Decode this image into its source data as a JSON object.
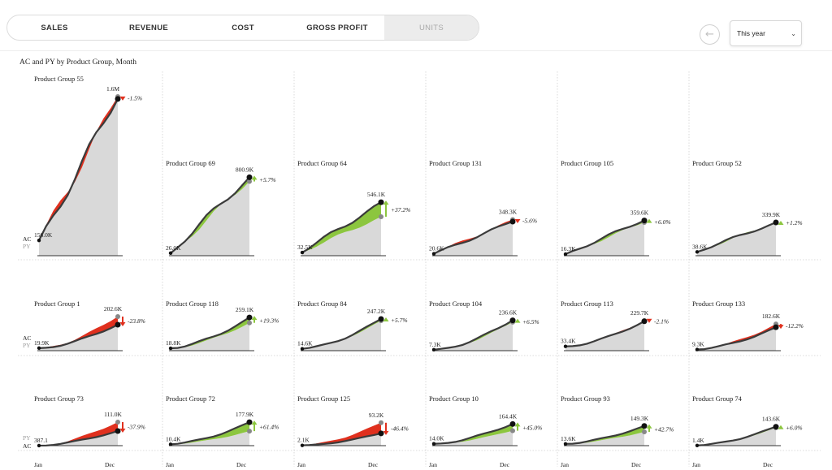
{
  "tabs": [
    {
      "label": "SALES",
      "active": false
    },
    {
      "label": "REVENUE",
      "active": false
    },
    {
      "label": "COST",
      "active": false
    },
    {
      "label": "GROSS PROFIT",
      "active": false
    },
    {
      "label": "UNITS",
      "active": true
    }
  ],
  "back_icon": "arrow-left-circle-icon",
  "period_select": {
    "value": "This year",
    "icon": "chevron-down-icon"
  },
  "colors": {
    "ac_line": "#3b3b3b",
    "py_area": "#d9d9d9",
    "positive": "#8cc63f",
    "negative": "#e0301e"
  },
  "chart_data": {
    "type": "small-multiples-area",
    "title": "AC and PY by Product Group, Month",
    "x_start": "Jan",
    "x_end": "Dec",
    "legend": {
      "ac": "AC",
      "py": "PY"
    },
    "rows": [
      {
        "axis_order": [
          "AC",
          "PY"
        ],
        "panels": [
          {
            "name": "Product Group 55",
            "start": "156.0K",
            "end": "1.6M",
            "delta": "-1.5%",
            "sign": "neg",
            "start_value": 156,
            "end_value": 1600,
            "py_end": 1624
          },
          {
            "name": "Product Group 69",
            "start": "26.0K",
            "end": "800.9K",
            "delta": "+5.7%",
            "sign": "pos",
            "start_value": 26,
            "end_value": 800.9,
            "py_end": 757.7
          },
          {
            "name": "Product Group 64",
            "start": "32.5K",
            "end": "546.1K",
            "delta": "+37.2%",
            "sign": "pos",
            "start_value": 32.5,
            "end_value": 546.1,
            "py_end": 398
          },
          {
            "name": "Product Group 131",
            "start": "20.6K",
            "end": "348.3K",
            "delta": "-5.6%",
            "sign": "neg",
            "start_value": 20.6,
            "end_value": 348.3,
            "py_end": 369
          },
          {
            "name": "Product Group 105",
            "start": "16.3K",
            "end": "359.6K",
            "delta": "+6.0%",
            "sign": "pos",
            "start_value": 16.3,
            "end_value": 359.6,
            "py_end": 339.2
          },
          {
            "name": "Product Group 52",
            "start": "38.6K",
            "end": "339.9K",
            "delta": "+1.2%",
            "sign": "pos",
            "start_value": 38.6,
            "end_value": 339.9,
            "py_end": 335.9
          }
        ]
      },
      {
        "axis_order": [
          "AC",
          "PY"
        ],
        "panels": [
          {
            "name": "Product Group 1",
            "start": "19.9K",
            "end": "202.6K",
            "delta": "-23.8%",
            "sign": "neg",
            "start_value": 19.9,
            "end_value": 202.6,
            "py_end": 265.9
          },
          {
            "name": "Product Group 118",
            "start": "18.8K",
            "end": "259.1K",
            "delta": "+19.3%",
            "sign": "pos",
            "start_value": 18.8,
            "end_value": 259.1,
            "py_end": 217.2
          },
          {
            "name": "Product Group 84",
            "start": "14.6K",
            "end": "247.2K",
            "delta": "+5.7%",
            "sign": "pos",
            "start_value": 14.6,
            "end_value": 247.2,
            "py_end": 233.9
          },
          {
            "name": "Product Group 104",
            "start": "7.3K",
            "end": "236.6K",
            "delta": "+6.5%",
            "sign": "pos",
            "start_value": 7.3,
            "end_value": 236.6,
            "py_end": 222.2
          },
          {
            "name": "Product Group 113",
            "start": "33.4K",
            "end": "229.7K",
            "delta": "-2.1%",
            "sign": "neg",
            "start_value": 33.4,
            "end_value": 229.7,
            "py_end": 234.6
          },
          {
            "name": "Product Group 133",
            "start": "9.3K",
            "end": "182.6K",
            "delta": "-12.2%",
            "sign": "neg",
            "start_value": 9.3,
            "end_value": 182.6,
            "py_end": 208
          }
        ]
      },
      {
        "axis_order": [
          "PY",
          "AC"
        ],
        "panels": [
          {
            "name": "Product Group 73",
            "start": "387.1",
            "end": "111.0K",
            "delta": "-37.9%",
            "sign": "neg",
            "start_value": 0.3871,
            "end_value": 111,
            "py_end": 178.7
          },
          {
            "name": "Product Group 72",
            "start": "10.4K",
            "end": "177.9K",
            "delta": "+61.4%",
            "sign": "pos",
            "start_value": 10.4,
            "end_value": 177.9,
            "py_end": 110.2
          },
          {
            "name": "Product Group 125",
            "start": "2.1K",
            "end": "93.2K",
            "delta": "-46.4%",
            "sign": "neg",
            "start_value": 2.1,
            "end_value": 93.2,
            "py_end": 173.9
          },
          {
            "name": "Product Group 10",
            "start": "14.0K",
            "end": "164.4K",
            "delta": "+45.0%",
            "sign": "pos",
            "start_value": 14,
            "end_value": 164.4,
            "py_end": 113.4
          },
          {
            "name": "Product Group 93",
            "start": "13.6K",
            "end": "149.3K",
            "delta": "+42.7%",
            "sign": "pos",
            "start_value": 13.6,
            "end_value": 149.3,
            "py_end": 104.6
          },
          {
            "name": "Product Group 74",
            "start": "1.4K",
            "end": "143.6K",
            "delta": "+6.0%",
            "sign": "pos",
            "start_value": 1.4,
            "end_value": 143.6,
            "py_end": 135.5
          }
        ]
      }
    ]
  }
}
